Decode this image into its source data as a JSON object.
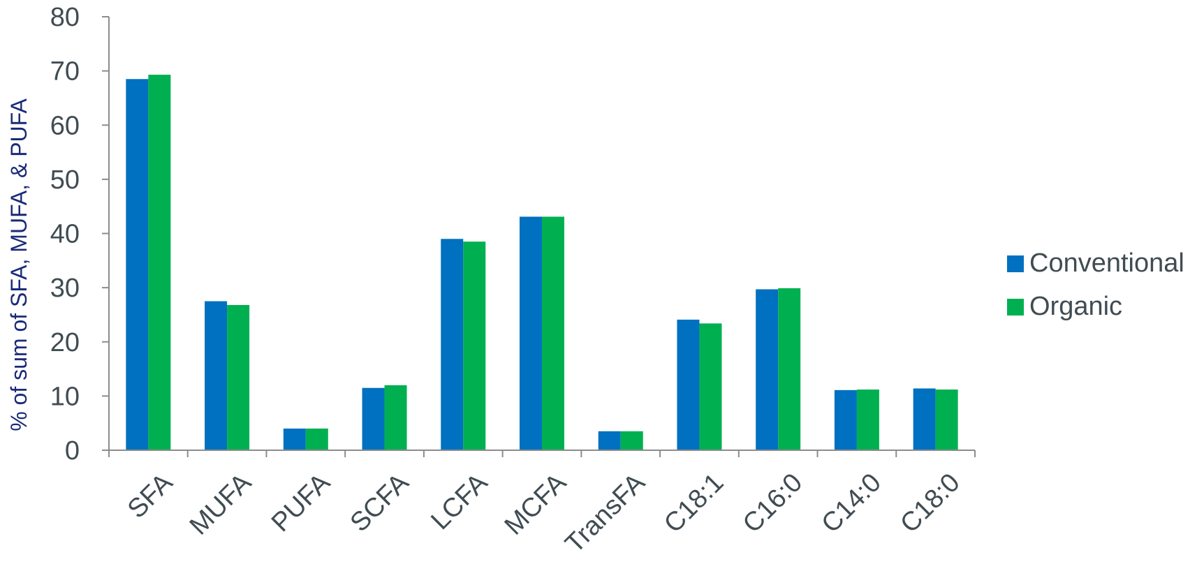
{
  "chart_data": {
    "type": "bar",
    "categories": [
      "SFA",
      "MUFA",
      "PUFA",
      "SCFA",
      "LCFA",
      "MCFA",
      "TransFA",
      "C18:1",
      "C16:0",
      "C14:0",
      "C18:0"
    ],
    "series": [
      {
        "name": "Conventional",
        "color": "#0070c0",
        "values": [
          68.5,
          27.5,
          4.0,
          11.5,
          39.0,
          43.1,
          3.5,
          24.1,
          29.7,
          11.1,
          11.4
        ]
      },
      {
        "name": "Organic",
        "color": "#00b050",
        "values": [
          69.3,
          26.8,
          4.0,
          12.0,
          38.5,
          43.1,
          3.5,
          23.4,
          29.9,
          11.2,
          11.2
        ]
      }
    ],
    "title": "",
    "xlabel": "",
    "ylabel": "% of sum of SFA, MUFA, & PUFA",
    "ylim": [
      0,
      80
    ],
    "yticks": [
      0,
      10,
      20,
      30,
      40,
      50,
      60,
      70,
      80
    ],
    "grid": false,
    "legend_position": "right"
  }
}
